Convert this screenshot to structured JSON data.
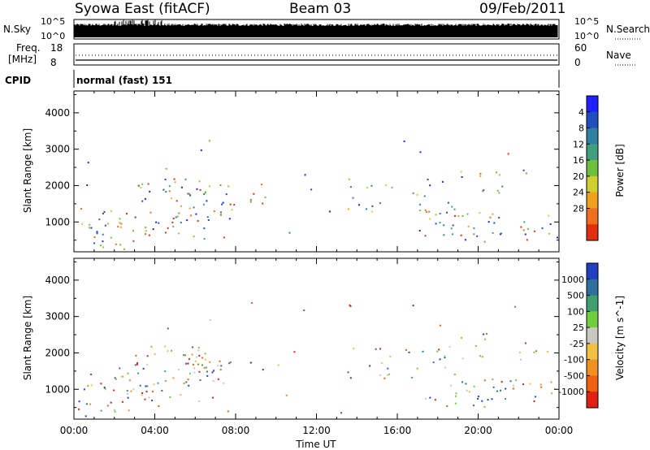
{
  "header": {
    "left": "Syowa East (fitACF)",
    "center": "Beam 03",
    "right": "09/Feb/2011"
  },
  "strip": {
    "nsky_label": "N.Sky",
    "nsky_top": "10^5",
    "nsky_bottom": "10^0",
    "nsearch_label": "N.Search",
    "nsearch_top": "10^5",
    "nsearch_bottom": "10^0",
    "freq_label_1": "Freq.",
    "freq_label_2": "[MHz]",
    "freq_top": "18",
    "freq_bottom": "8",
    "nave_label": "Nave",
    "nave_top": "60",
    "nave_bottom": "0",
    "cpid_label": "CPID",
    "cpid_text": "normal (fast) 151"
  },
  "chart_data": [
    {
      "type": "heatmap",
      "ylabel": "Slant Range [km]",
      "xlabel": "Time UT",
      "x_ticks": [
        "00:00",
        "04:00",
        "08:00",
        "12:00",
        "16:00",
        "20:00",
        "00:00"
      ],
      "y_ticks": [
        1000,
        2000,
        3000,
        4000
      ],
      "ylim": [
        180,
        4600
      ],
      "xlim_hours": [
        0,
        24
      ],
      "colorbar": {
        "label": "Power [dB]",
        "ticks": [
          "4",
          "8",
          "12",
          "16",
          "20",
          "24",
          "28"
        ],
        "colors": [
          "#1f1fff",
          "#1f4fbf",
          "#2f7fa0",
          "#3f9f7f",
          "#6fbf3f",
          "#cfcf2f",
          "#efa01f",
          "#ef6f1f",
          "#e03010"
        ]
      }
    },
    {
      "type": "heatmap",
      "ylabel": "Slant Range [km]",
      "xlabel": "Time UT",
      "x_ticks": [
        "00:00",
        "04:00",
        "08:00",
        "12:00",
        "16:00",
        "20:00",
        "00:00"
      ],
      "y_ticks": [
        1000,
        2000,
        3000,
        4000
      ],
      "ylim": [
        180,
        4600
      ],
      "xlim_hours": [
        0,
        24
      ],
      "colorbar": {
        "label": "Velocity [m s^-1]",
        "ticks": [
          "1000",
          "500",
          "100",
          "25",
          "-25",
          "-100",
          "-500",
          "-1000"
        ],
        "colors": [
          "#2040c0",
          "#2f6fa0",
          "#3f9f6f",
          "#6fcf3f",
          "#c8c8c0",
          "#f0c040",
          "#f09020",
          "#f06010",
          "#e02010"
        ]
      }
    }
  ]
}
